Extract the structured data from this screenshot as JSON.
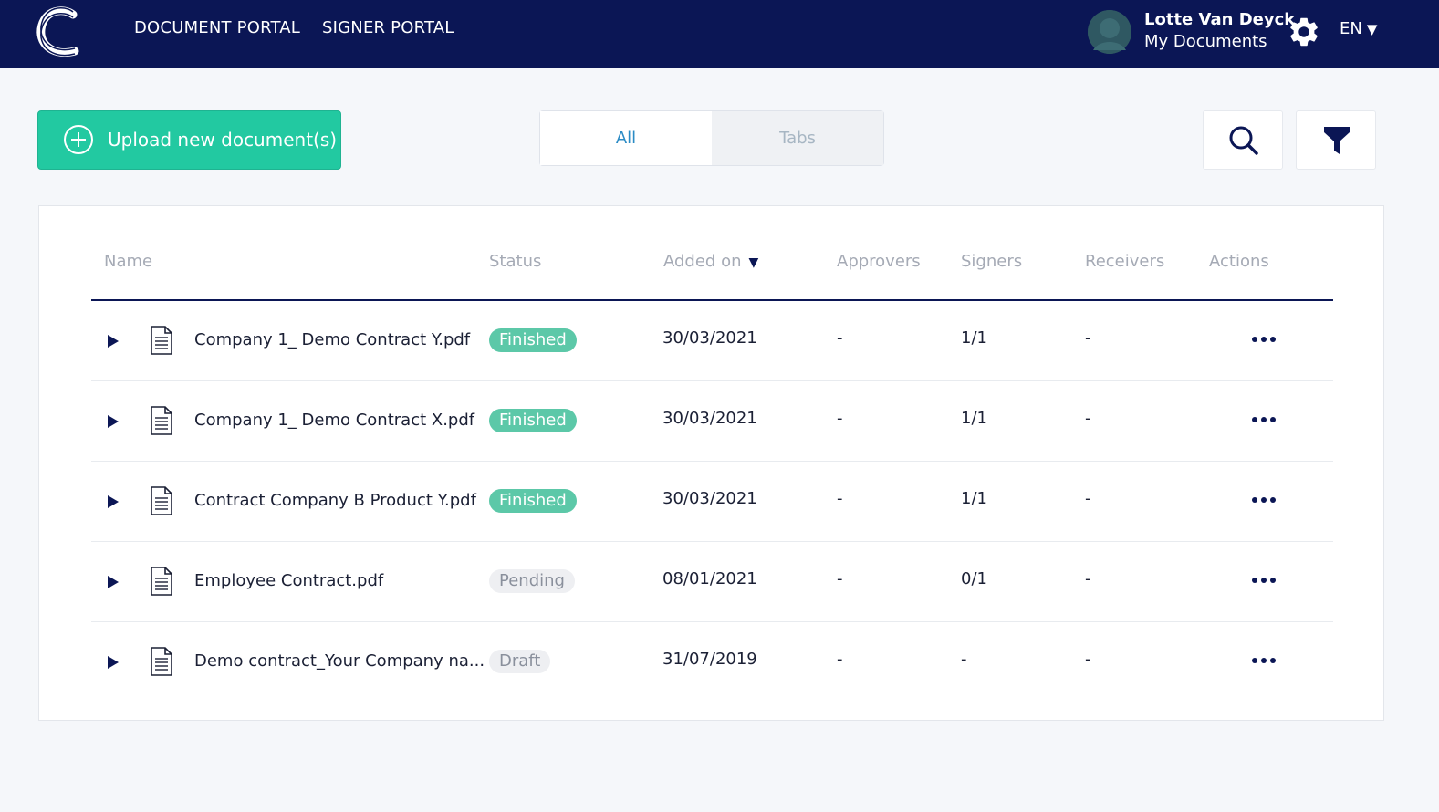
{
  "header": {
    "nav": [
      "DOCUMENT PORTAL",
      "SIGNER PORTAL"
    ],
    "user_name": "Lotte Van Deyck",
    "user_sub": "My Documents",
    "language": "EN",
    "logo_icon": "brand-c-logo",
    "settings_icon": "gear-icon"
  },
  "toolbar": {
    "upload_label": "Upload new document(s)",
    "tabs": {
      "all": "All",
      "tabs": "Tabs",
      "selected": "All"
    },
    "search_icon": "search-icon",
    "filter_icon": "filter-icon"
  },
  "table": {
    "columns": {
      "name": "Name",
      "status": "Status",
      "added_on": "Added on",
      "approvers": "Approvers",
      "signers": "Signers",
      "receivers": "Receivers",
      "actions": "Actions"
    },
    "sort_column": "added_on",
    "sort_direction": "descending",
    "rows": [
      {
        "name": "Company 1_ Demo Contract Y.pdf",
        "status": "Finished",
        "date": "30/03/2021",
        "approvers": "-",
        "signers": "1/1",
        "receivers": "-"
      },
      {
        "name": "Company 1_ Demo Contract X.pdf",
        "status": "Finished",
        "date": "30/03/2021",
        "approvers": "-",
        "signers": "1/1",
        "receivers": "-"
      },
      {
        "name": "Contract Company B Product Y.pdf",
        "status": "Finished",
        "date": "30/03/2021",
        "approvers": "-",
        "signers": "1/1",
        "receivers": "-"
      },
      {
        "name": "Employee Contract.pdf",
        "status": "Pending",
        "date": "08/01/2021",
        "approvers": "-",
        "signers": "0/1",
        "receivers": "-"
      },
      {
        "name": "Demo contract_Your Company na...",
        "status": "Draft",
        "date": "31/07/2019",
        "approvers": "-",
        "signers": "-",
        "receivers": "-"
      }
    ]
  },
  "colors": {
    "header_bg": "#0b1655",
    "accent_green": "#22c9a1",
    "badge_finished": "#5cc8a8",
    "link_blue": "#2b8bc5"
  }
}
